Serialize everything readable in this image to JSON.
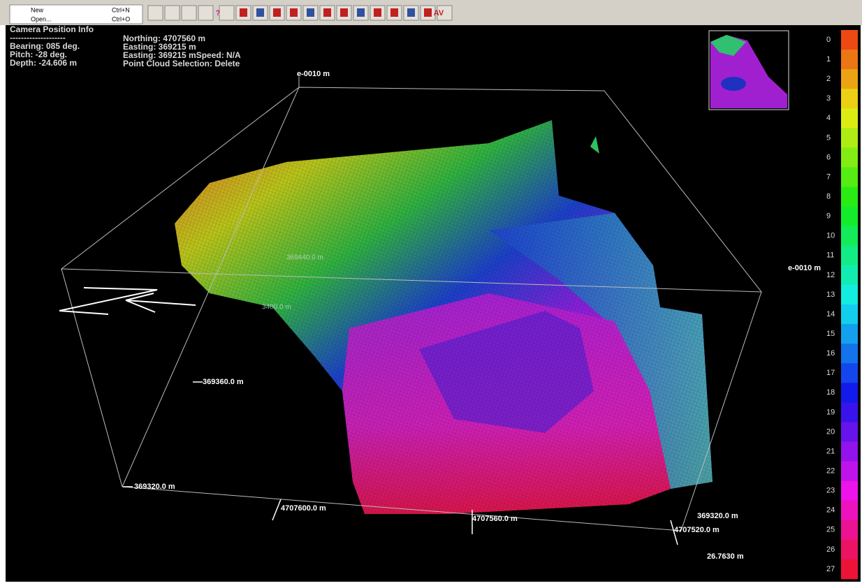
{
  "menu": [
    {
      "label": "New",
      "shortcut": "Ctrl+N"
    },
    {
      "label": "Open...",
      "shortcut": "Ctrl+O"
    }
  ],
  "toolbar": {
    "buttons": [
      "?",
      "AV"
    ]
  },
  "info": {
    "title": "Camera Position Info",
    "separator": "--------------------",
    "lines_left": [
      "Bearing: 085 deg.",
      "Pitch: -28 deg.",
      "Depth: -24.606 m"
    ],
    "lines_right": [
      "Northing: 4707560 m",
      "Easting: 369215 m",
      "Easting: 369215 mSpeed: N/A",
      "Point Cloud Selection: Delete"
    ]
  },
  "scene_labels": [
    "e-0010 m",
    "e-0010 m",
    "369360.0 m",
    "369320.0 m",
    "4707600.0 m",
    "4707560.0 m",
    "369320.0 m",
    "4707520.0 m",
    "26.7630 m",
    "369440.0 m",
    "3400.0 m"
  ],
  "color_scale": {
    "labels": [
      0,
      1,
      2,
      3,
      4,
      5,
      6,
      7,
      8,
      9,
      10,
      11,
      12,
      13,
      14,
      15,
      16,
      17,
      18,
      19,
      20,
      21,
      22,
      23,
      24,
      25,
      26,
      27
    ]
  }
}
